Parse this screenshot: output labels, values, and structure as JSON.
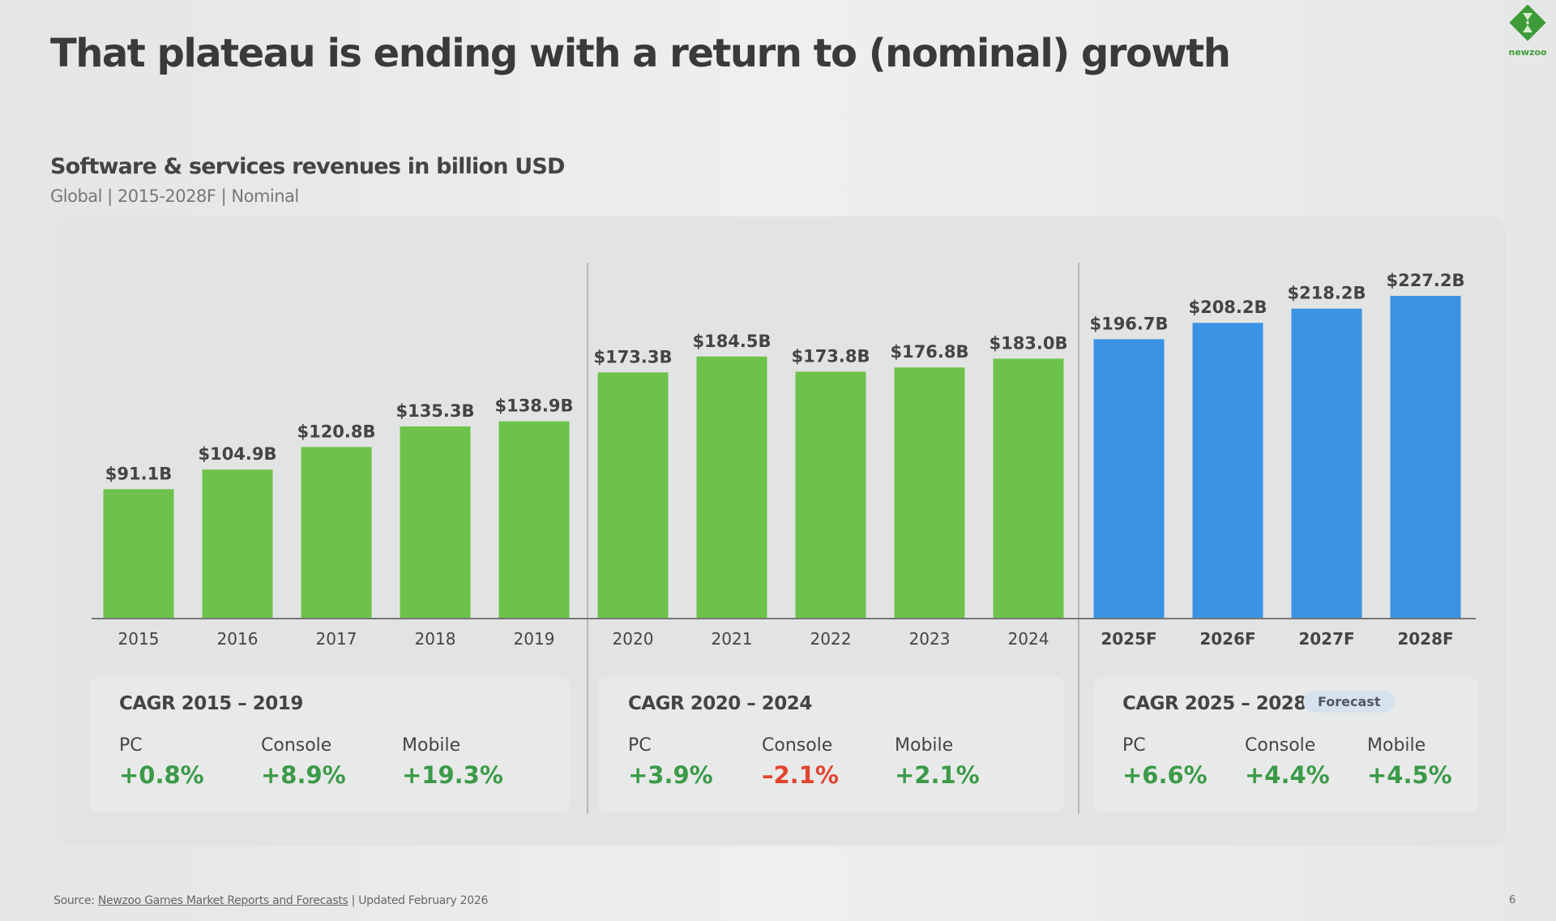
{
  "title": "That plateau is ending with a return to (nominal) growth",
  "logo_text": "newzoo",
  "chart_data": {
    "type": "bar",
    "title": "Software & services revenues in billion USD",
    "subtitle": "Global | 2015-2028F | Nominal",
    "categories": [
      "2015",
      "2016",
      "2017",
      "2018",
      "2019",
      "2020",
      "2021",
      "2022",
      "2023",
      "2024",
      "2025F",
      "2026F",
      "2027F",
      "2028F"
    ],
    "values": [
      91.1,
      104.9,
      120.8,
      135.3,
      138.9,
      173.3,
      184.5,
      173.8,
      176.8,
      183.0,
      196.7,
      208.2,
      218.2,
      227.2
    ],
    "data_labels": [
      "$91.1B",
      "$104.9B",
      "$120.8B",
      "$135.3B",
      "$138.9B",
      "$173.3B",
      "$184.5B",
      "$173.8B",
      "$176.8B",
      "$183.0B",
      "$196.7B",
      "$208.2B",
      "$218.2B",
      "$227.2B"
    ],
    "forecast_from": "2025F",
    "colors": {
      "actual": "#6cc24a",
      "forecast": "#3a93e4"
    },
    "ylim": [
      0,
      240
    ],
    "grid": false
  },
  "cagr": [
    {
      "title": "CAGR 2015 – 2019",
      "items": [
        {
          "label": "PC",
          "value": "+0.8%"
        },
        {
          "label": "Console",
          "value": "+8.9%"
        },
        {
          "label": "Mobile",
          "value": "+19.3%"
        }
      ]
    },
    {
      "title": "CAGR 2020 – 2024",
      "items": [
        {
          "label": "PC",
          "value": "+3.9%"
        },
        {
          "label": "Console",
          "value": "-2.1%"
        },
        {
          "label": "Mobile",
          "value": "+2.1%"
        }
      ]
    },
    {
      "title": "CAGR 2025 – 2028",
      "badge": "Forecast",
      "items": [
        {
          "label": "PC",
          "value": "+6.6%"
        },
        {
          "label": "Console",
          "value": "+4.4%"
        },
        {
          "label": "Mobile",
          "value": "+4.5%"
        }
      ]
    }
  ],
  "colors": {
    "positive": "#3c9a48",
    "negative": "#e2452f"
  },
  "footer": {
    "prefix": "Source: ",
    "link": "Newzoo Games Market Reports and Forecasts",
    "suffix": " | Updated February 2026"
  },
  "page_number": "6"
}
